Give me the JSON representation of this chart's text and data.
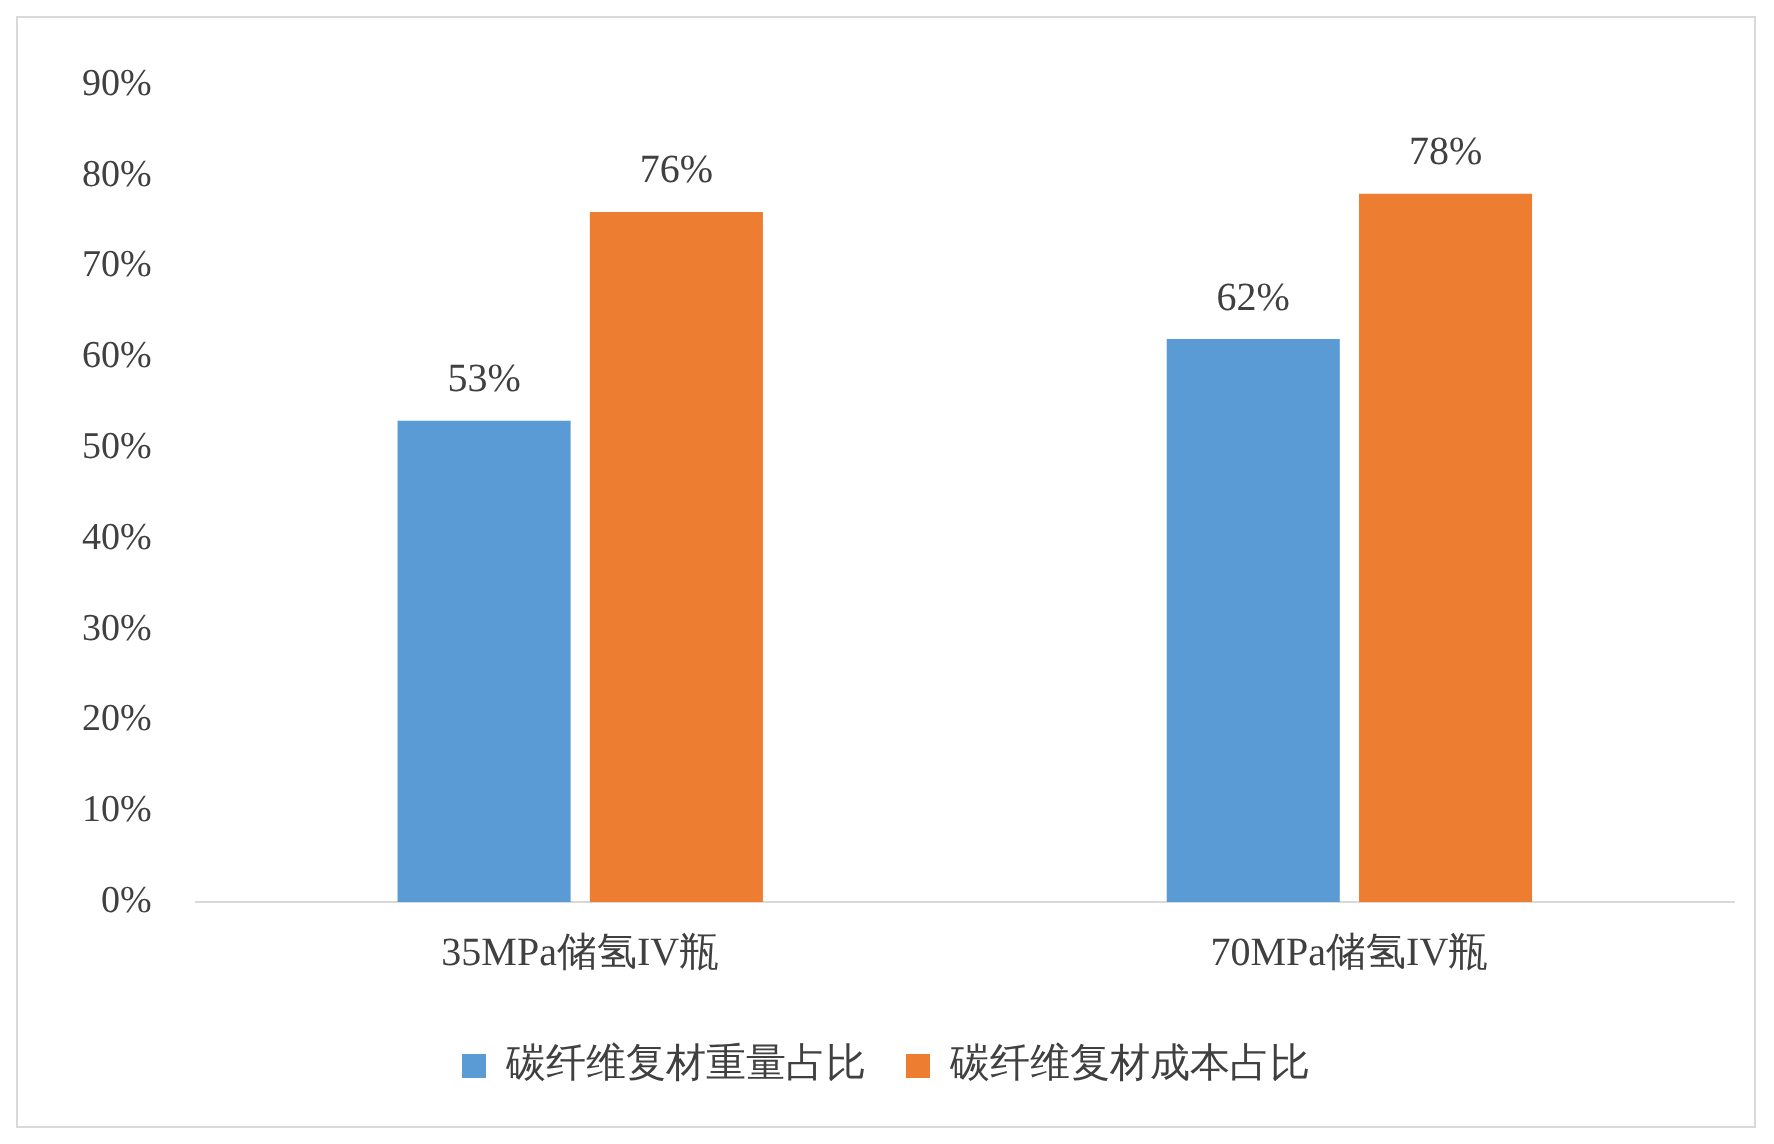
{
  "chart_data": {
    "type": "bar",
    "categories": [
      "35MPa储氢IV瓶",
      "70MPa储氢IV瓶"
    ],
    "series": [
      {
        "name": "碳纤维复材重量占比",
        "color": "#5b9bd5",
        "values": [
          53,
          62
        ],
        "value_labels": [
          "53%",
          "62%"
        ]
      },
      {
        "name": "碳纤维复材成本占比",
        "color": "#ed7d31",
        "values": [
          76,
          78
        ],
        "value_labels": [
          "76%",
          "78%"
        ]
      }
    ],
    "ylim": [
      0,
      90
    ],
    "yticks": [
      {
        "value": 0,
        "label": "0%"
      },
      {
        "value": 10,
        "label": "10%"
      },
      {
        "value": 20,
        "label": "20%"
      },
      {
        "value": 30,
        "label": "30%"
      },
      {
        "value": 40,
        "label": "40%"
      },
      {
        "value": 50,
        "label": "50%"
      },
      {
        "value": 60,
        "label": "60%"
      },
      {
        "value": 70,
        "label": "70%"
      },
      {
        "value": 80,
        "label": "80%"
      },
      {
        "value": 90,
        "label": "90%"
      }
    ],
    "grid": false,
    "legend": "bottom"
  }
}
